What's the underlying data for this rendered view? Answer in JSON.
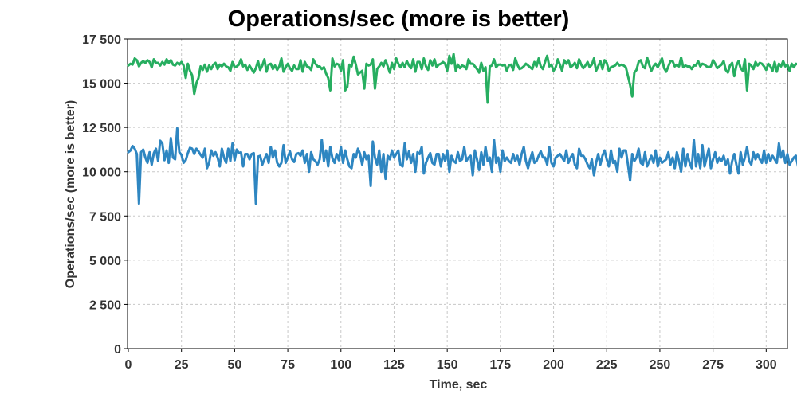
{
  "chart_data": {
    "type": "line",
    "title": "Operations/sec (more is better)",
    "xlabel": "Time, sec",
    "ylabel": "Operations/sec (more is better)",
    "xlim": [
      0,
      310
    ],
    "ylim": [
      0,
      17500
    ],
    "x_ticks": [
      0,
      25,
      50,
      75,
      100,
      125,
      150,
      175,
      200,
      225,
      250,
      275,
      300
    ],
    "x_tick_labels": [
      "0",
      "25",
      "50",
      "75",
      "100",
      "125",
      "150",
      "175",
      "200",
      "225",
      "250",
      "275",
      "300"
    ],
    "y_ticks": [
      0,
      2500,
      5000,
      7500,
      10000,
      12500,
      15000,
      17500
    ],
    "y_tick_labels": [
      "0",
      "2 500",
      "5 000",
      "7 500",
      "10 000",
      "12 500",
      "15 000",
      "17 500"
    ],
    "grid": true,
    "x_step": 1,
    "series": [
      {
        "color": "#27ae60",
        "values": [
          16000,
          16100,
          16050,
          16400,
          16300,
          15950,
          16150,
          16250,
          16150,
          16300,
          16200,
          15900,
          16350,
          16150,
          16150,
          16000,
          16200,
          16050,
          16350,
          16150,
          16300,
          16050,
          16000,
          16150,
          16050,
          16200,
          16000,
          15300,
          16100,
          15700,
          15450,
          14400,
          15000,
          15300,
          15950,
          15750,
          16050,
          15650,
          16000,
          15800,
          16050,
          16150,
          15800,
          16050,
          15950,
          16100,
          15950,
          15900,
          15700,
          16200,
          15900,
          15950,
          16050,
          16350,
          15950,
          16050,
          15750,
          16000,
          15800,
          15600,
          15850,
          16250,
          15750,
          16000,
          16350,
          15650,
          16050,
          16100,
          15800,
          16000,
          15750,
          15950,
          16400,
          15650,
          15900,
          16100,
          15850,
          15700,
          16000,
          15800,
          15800,
          16300,
          15650,
          16200,
          15950,
          15900,
          15750,
          16350,
          16100,
          15950,
          15950,
          15800,
          15900,
          15550,
          15300,
          14600,
          16400,
          15950,
          16100,
          16050,
          15700,
          16300,
          14600,
          14800,
          16050,
          15950,
          16500,
          16050,
          15500,
          15600,
          15700,
          14700,
          16100,
          16000,
          16050,
          16350,
          14700,
          15800,
          15950,
          16150,
          15950,
          16300,
          15950,
          15600,
          16150,
          15800,
          16400,
          16100,
          15900,
          16150,
          15900,
          16250,
          16000,
          15850,
          16350,
          15650,
          16200,
          16200,
          15800,
          16400,
          15950,
          15750,
          16300,
          16000,
          16350,
          15900,
          16050,
          16100,
          16200,
          16100,
          15700,
          16550,
          16100,
          16650,
          15700,
          16050,
          15850,
          16000,
          15950,
          15800,
          16350,
          16100,
          16100,
          15950,
          15800,
          15600,
          16150,
          15700,
          15900,
          13900,
          15950,
          16000,
          16350,
          15900,
          16050,
          16050,
          16000,
          16050,
          15700,
          16000,
          16050,
          15750,
          16400,
          16050,
          15800,
          15850,
          15950,
          16100,
          16000,
          15900,
          15800,
          16200,
          15950,
          16400,
          15950,
          15800,
          16200,
          16550,
          15950,
          16050,
          15700,
          15900,
          16350,
          16050,
          15700,
          16300,
          16100,
          16300,
          15900,
          16000,
          16150,
          15850,
          16350,
          16050,
          15850,
          16000,
          16200,
          15900,
          16050,
          16400,
          15700,
          15950,
          16250,
          15800,
          16300,
          16150,
          15700,
          15900,
          15950,
          16000,
          16150,
          16000,
          16050,
          16000,
          15900,
          15400,
          14900,
          14250,
          15600,
          15750,
          16200,
          16300,
          15950,
          15850,
          16450,
          16050,
          15700,
          15950,
          16100,
          15900,
          16150,
          16400,
          15850,
          15650,
          15950,
          16250,
          16250,
          15950,
          16050,
          15950,
          16450,
          15900,
          16000,
          15950,
          15950,
          15800,
          16000,
          16000,
          16250,
          15950,
          16100,
          16050,
          15950,
          15900,
          15950,
          16300,
          16100,
          15850,
          15950,
          16050,
          16250,
          15750,
          15600,
          16000,
          16150,
          15400,
          16000,
          16250,
          15850,
          15700,
          16350,
          14600,
          16100,
          16000,
          15800,
          16200,
          16000,
          16150,
          16100,
          15950,
          15750,
          16100,
          15950,
          15700,
          16200,
          15650,
          16100,
          15950,
          16250,
          15950,
          16050,
          15700,
          16100,
          15900,
          16100,
          16050,
          15950
        ]
      },
      {
        "color": "#2e86c1",
        "values": [
          11100,
          11200,
          11450,
          11300,
          11000,
          8200,
          11100,
          11250,
          10800,
          10500,
          11100,
          10400,
          11050,
          11300,
          10600,
          11750,
          11600,
          10650,
          11200,
          10500,
          11900,
          10800,
          10700,
          12450,
          11100,
          10950,
          10500,
          10650,
          11050,
          11350,
          11300,
          11000,
          11300,
          11150,
          10950,
          10800,
          11300,
          10200,
          10500,
          11200,
          10900,
          11100,
          10800,
          10300,
          11300,
          10800,
          10500,
          11300,
          10600,
          11600,
          10650,
          11250,
          11050,
          11100,
          10300,
          11000,
          11000,
          10700,
          11000,
          11050,
          8200,
          10850,
          10900,
          10400,
          10700,
          11000,
          10500,
          11400,
          10800,
          11200,
          10500,
          10300,
          10500,
          11500,
          10500,
          10800,
          11150,
          10700,
          10550,
          11000,
          11050,
          10900,
          11200,
          10500,
          11000,
          10000,
          11100,
          10700,
          10600,
          10400,
          10700,
          11800,
          10600,
          11200,
          10300,
          11400,
          10750,
          10500,
          11000,
          10650,
          11400,
          10500,
          11200,
          10700,
          10300,
          10200,
          11000,
          10800,
          11300,
          11000,
          10400,
          11100,
          10700,
          10900,
          9200,
          11700,
          10800,
          10400,
          11200,
          10000,
          11000,
          9600,
          10900,
          10700,
          11200,
          10800,
          11000,
          11200,
          10400,
          10300,
          11600,
          10700,
          11150,
          10500,
          11000,
          10000,
          11100,
          11000,
          11400,
          9900,
          10500,
          10800,
          11050,
          10500,
          10400,
          11000,
          11000,
          10300,
          11000,
          10600,
          11200,
          10000,
          10900,
          10600,
          10500,
          11100,
          10600,
          10700,
          11400,
          10600,
          10800,
          10900,
          9800,
          11200,
          10700,
          10100,
          11100,
          10400,
          11400,
          10600,
          10800,
          10000,
          11800,
          10500,
          10800,
          10000,
          11200,
          10600,
          10800,
          10600,
          10500,
          11000,
          10600,
          10900,
          10400,
          11000,
          11400,
          10600,
          10200,
          10700,
          11100,
          10500,
          10600,
          10900,
          11150,
          10800,
          10800,
          10400,
          11400,
          10500,
          10300,
          10800,
          10900,
          11000,
          10800,
          10600,
          11200,
          10500,
          10800,
          11000,
          10400,
          10200,
          11300,
          10900,
          10900,
          10700,
          10400,
          10200,
          10700,
          9800,
          10500,
          11000,
          10400,
          10900,
          11200,
          10700,
          10300,
          11200,
          10500,
          10600,
          10000,
          11300,
          10800,
          11200,
          11200,
          10400,
          9500,
          11000,
          10600,
          10800,
          11300,
          10500,
          10400,
          11100,
          10300,
          10600,
          10900,
          10500,
          11200,
          10300,
          10800,
          10500,
          10600,
          10700,
          11100,
          10400,
          10800,
          10200,
          11100,
          10600,
          10000,
          11300,
          10300,
          11000,
          10500,
          10200,
          11800,
          10300,
          11000,
          10200,
          11500,
          10300,
          10800,
          11300,
          10200,
          10700,
          11100,
          10500,
          10800,
          10600,
          10900,
          10400,
          10700,
          9900,
          10600,
          11000,
          10400,
          9900,
          11100,
          10400,
          10800,
          11400,
          10600,
          10400,
          11100,
          10700,
          11000,
          10700,
          10500,
          11200,
          10500,
          11000,
          10600,
          10900,
          10700,
          10500,
          11600,
          10800,
          11200,
          10500,
          11000,
          10400,
          10600,
          10800,
          10900,
          10300,
          10400,
          11100,
          10900
        ]
      }
    ]
  }
}
